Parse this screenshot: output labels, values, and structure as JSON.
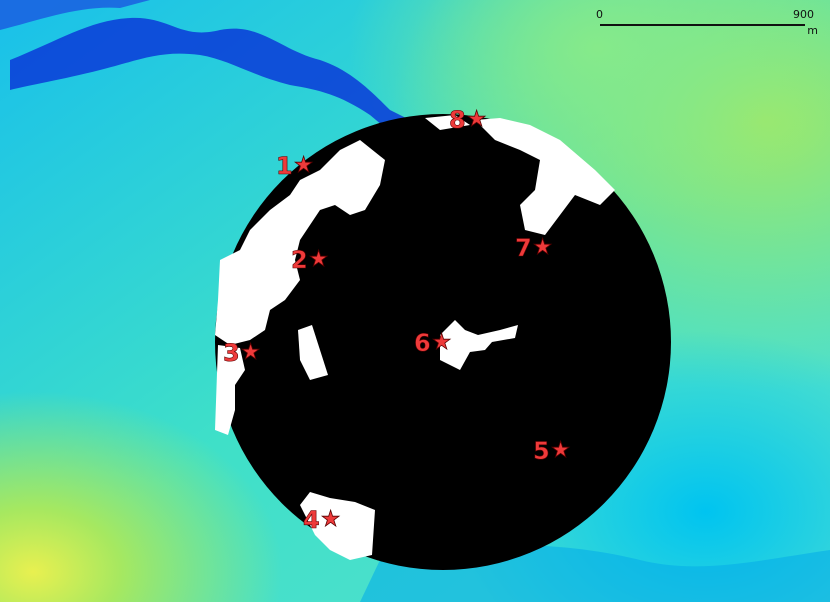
{
  "scale_bar": {
    "min_label": "0",
    "max_label": "900",
    "unit": "m"
  },
  "markers": [
    {
      "id": 1,
      "label": "1",
      "icon": "star-icon"
    },
    {
      "id": 2,
      "label": "2",
      "icon": "star-icon"
    },
    {
      "id": 3,
      "label": "3",
      "icon": "star-icon"
    },
    {
      "id": 4,
      "label": "4",
      "icon": "star-icon"
    },
    {
      "id": 5,
      "label": "5",
      "icon": "star-icon"
    },
    {
      "id": 6,
      "label": "6",
      "icon": "star-icon"
    },
    {
      "id": 7,
      "label": "7",
      "icon": "star-icon"
    },
    {
      "id": 8,
      "label": "8",
      "icon": "star-icon"
    }
  ],
  "colors": {
    "marker": "#ee3a3a",
    "mask_fill": "#000000",
    "visible_area": "#ffffff",
    "river": "#1030c8",
    "terrain_low": "#00bfe8",
    "terrain_high": "#8ee86a"
  }
}
